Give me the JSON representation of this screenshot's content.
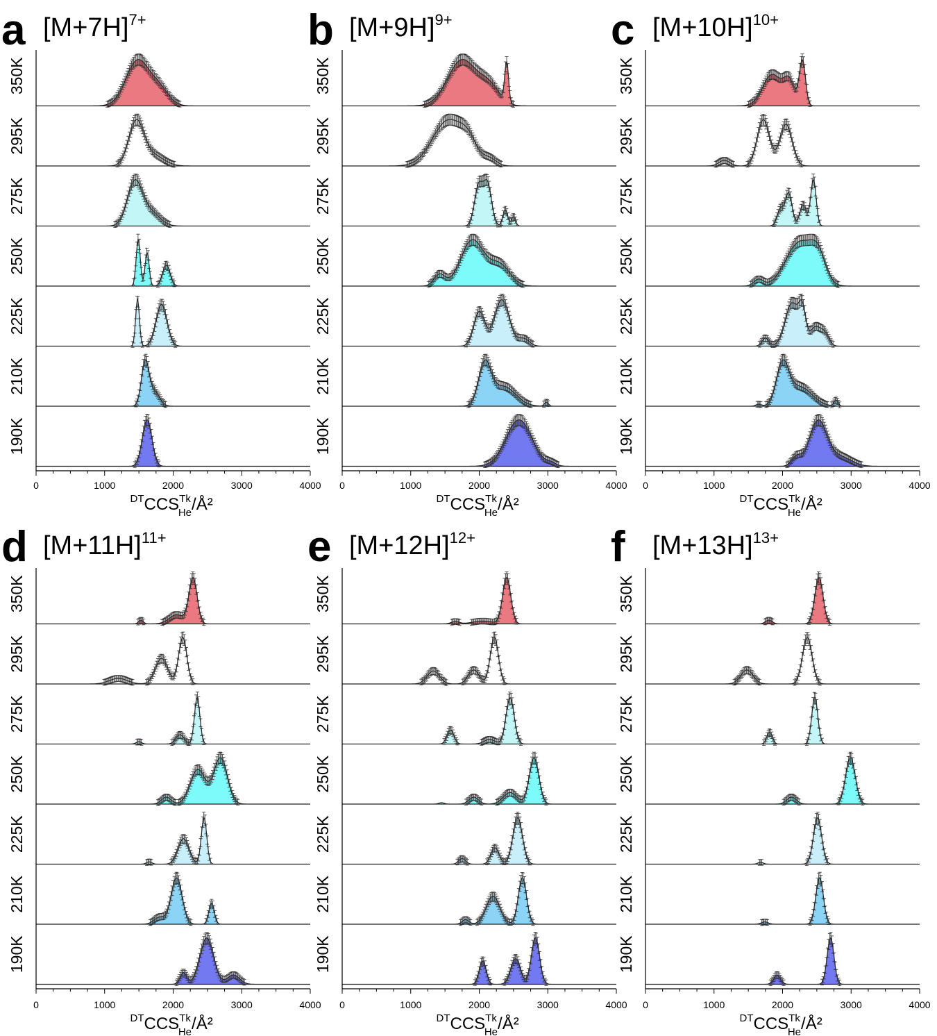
{
  "figure": {
    "colors": {
      "350K": "#e8626b",
      "295K": "#ffffff",
      "275K": "#b8f4f4",
      "250K": "#66fafa",
      "225K": "#c0ecfa",
      "210K": "#78ccf4",
      "190K": "#5a62ee"
    }
  },
  "chart_data": [
    {
      "type": "area",
      "panel": "a",
      "ion": "[M+7H]",
      "charge": "7+",
      "xlim": [
        0,
        4000
      ],
      "xticks": [
        "0",
        "1000",
        "2000",
        "3000",
        "4000"
      ],
      "xlabel": {
        "pre": "DT",
        "main": "CCS",
        "sub": "He",
        "sup": "Tk",
        "unit": "/Å²"
      },
      "series": [
        {
          "name": "350K",
          "peaks": [
            [
              1480,
              170,
              1.0
            ],
            [
              1800,
              140,
              0.35
            ]
          ]
        },
        {
          "name": "295K",
          "peaks": [
            [
              1460,
              110,
              1.0
            ],
            [
              1700,
              160,
              0.25
            ]
          ]
        },
        {
          "name": "275K",
          "peaks": [
            [
              1440,
              110,
              1.0
            ],
            [
              1680,
              130,
              0.3
            ]
          ]
        },
        {
          "name": "250K",
          "peaks": [
            [
              1490,
              30,
              1.0
            ],
            [
              1620,
              30,
              0.72
            ],
            [
              1900,
              55,
              0.45
            ]
          ]
        },
        {
          "name": "225K",
          "peaks": [
            [
              1480,
              28,
              1.0
            ],
            [
              1830,
              80,
              0.9
            ]
          ]
        },
        {
          "name": "210K",
          "peaks": [
            [
              1590,
              55,
              1.0
            ],
            [
              1720,
              80,
              0.35
            ]
          ]
        },
        {
          "name": "190K",
          "peaks": [
            [
              1620,
              70,
              1.0
            ]
          ]
        }
      ]
    },
    {
      "type": "area",
      "panel": "b",
      "ion": "[M+9H]",
      "charge": "9+",
      "xlim": [
        0,
        4000
      ],
      "xticks": [
        "0",
        "1000",
        "2000",
        "3000",
        "4000"
      ],
      "xlabel": {
        "pre": "DT",
        "main": "CCS",
        "sub": "He",
        "sup": "Tk",
        "unit": "/Å²"
      },
      "series": [
        {
          "name": "350K",
          "peaks": [
            [
              1750,
              210,
              1.0
            ],
            [
              2150,
              150,
              0.4
            ],
            [
              2400,
              28,
              0.85
            ]
          ]
        },
        {
          "name": "295K",
          "peaks": [
            [
              1550,
              230,
              1.0
            ],
            [
              1850,
              120,
              0.35
            ],
            [
              2150,
              100,
              0.15
            ]
          ]
        },
        {
          "name": "275K",
          "peaks": [
            [
              1990,
              60,
              0.85
            ],
            [
              2120,
              60,
              0.9
            ],
            [
              2380,
              35,
              0.35
            ],
            [
              2500,
              30,
              0.2
            ]
          ]
        },
        {
          "name": "250K",
          "peaks": [
            [
              1900,
              170,
              1.0
            ],
            [
              1420,
              80,
              0.25
            ],
            [
              2300,
              150,
              0.45
            ]
          ]
        },
        {
          "name": "225K",
          "peaks": [
            [
              2000,
              80,
              0.7
            ],
            [
              2330,
              110,
              0.95
            ],
            [
              2650,
              80,
              0.15
            ]
          ]
        },
        {
          "name": "210K",
          "peaks": [
            [
              2080,
              90,
              1.0
            ],
            [
              2350,
              180,
              0.5
            ],
            [
              2980,
              30,
              0.1
            ]
          ]
        },
        {
          "name": "190K",
          "peaks": [
            [
              2580,
              190,
              1.0
            ],
            [
              3050,
              70,
              0.06
            ]
          ]
        }
      ]
    },
    {
      "type": "area",
      "panel": "c",
      "ion": "[M+10H]",
      "charge": "10+",
      "xlim": [
        0,
        4000
      ],
      "xticks": [
        "0",
        "1000",
        "2000",
        "3000",
        "4000"
      ],
      "xlabel": {
        "pre": "DT",
        "main": "CCS",
        "sub": "He",
        "sup": "Tk",
        "unit": "/Å²"
      },
      "series": [
        {
          "name": "350K",
          "peaks": [
            [
              1850,
              140,
              0.7
            ],
            [
              2100,
              80,
              0.5
            ],
            [
              2290,
              45,
              1.0
            ]
          ]
        },
        {
          "name": "295K",
          "peaks": [
            [
              1720,
              90,
              1.0
            ],
            [
              2050,
              90,
              0.9
            ],
            [
              1150,
              80,
              0.12
            ]
          ]
        },
        {
          "name": "275K",
          "peaks": [
            [
              1970,
              50,
              0.35
            ],
            [
              2090,
              50,
              0.7
            ],
            [
              2300,
              50,
              0.45
            ],
            [
              2450,
              40,
              1.0
            ]
          ]
        },
        {
          "name": "250K",
          "peaks": [
            [
              2250,
              200,
              1.0
            ],
            [
              2520,
              110,
              0.55
            ],
            [
              1650,
              70,
              0.15
            ]
          ]
        },
        {
          "name": "225K",
          "peaks": [
            [
              2140,
              100,
              0.8
            ],
            [
              2290,
              50,
              0.55
            ],
            [
              2480,
              80,
              0.35
            ],
            [
              2620,
              60,
              0.2
            ],
            [
              1750,
              50,
              0.15
            ]
          ]
        },
        {
          "name": "210K",
          "peaks": [
            [
              2000,
              90,
              1.0
            ],
            [
              2250,
              180,
              0.5
            ],
            [
              2780,
              30,
              0.15
            ],
            [
              1650,
              40,
              0.05
            ]
          ]
        },
        {
          "name": "190K",
          "peaks": [
            [
              2520,
              130,
              1.0
            ],
            [
              2200,
              70,
              0.2
            ],
            [
              2850,
              160,
              0.2
            ]
          ]
        }
      ]
    },
    {
      "type": "area",
      "panel": "d",
      "ion": "[M+11H]",
      "charge": "11+",
      "xlim": [
        0,
        4000
      ],
      "xticks": [
        "0",
        "1000",
        "2000",
        "3000",
        "4000"
      ],
      "xlabel": {
        "pre": "DT",
        "main": "CCS",
        "sub": "He",
        "sup": "Tk",
        "unit": "/Å²"
      },
      "series": [
        {
          "name": "350K",
          "peaks": [
            [
              2290,
              60,
              1.0
            ],
            [
              2050,
              110,
              0.2
            ],
            [
              1530,
              35,
              0.08
            ]
          ]
        },
        {
          "name": "295K",
          "peaks": [
            [
              2140,
              60,
              1.0
            ],
            [
              1830,
              90,
              0.55
            ],
            [
              1200,
              130,
              0.12
            ]
          ]
        },
        {
          "name": "275K",
          "peaks": [
            [
              2350,
              40,
              1.0
            ],
            [
              2100,
              60,
              0.2
            ],
            [
              1500,
              40,
              0.05
            ]
          ]
        },
        {
          "name": "250K",
          "peaks": [
            [
              2690,
              100,
              1.0
            ],
            [
              2360,
              110,
              0.75
            ],
            [
              1900,
              70,
              0.15
            ]
          ]
        },
        {
          "name": "225K",
          "peaks": [
            [
              2450,
              40,
              1.0
            ],
            [
              2150,
              80,
              0.55
            ],
            [
              1650,
              40,
              0.05
            ]
          ]
        },
        {
          "name": "210K",
          "peaks": [
            [
              2050,
              80,
              1.0
            ],
            [
              2560,
              40,
              0.45
            ],
            [
              1800,
              80,
              0.15
            ]
          ]
        },
        {
          "name": "190K",
          "peaks": [
            [
              2490,
              100,
              1.0
            ],
            [
              2150,
              50,
              0.25
            ],
            [
              2880,
              90,
              0.2
            ]
          ]
        }
      ]
    },
    {
      "type": "area",
      "panel": "e",
      "ion": "[M+12H]",
      "charge": "12+",
      "xlim": [
        0,
        4000
      ],
      "xticks": [
        "0",
        "1000",
        "2000",
        "3000",
        "4000"
      ],
      "xlabel": {
        "pre": "DT",
        "main": "CCS",
        "sub": "He",
        "sup": "Tk",
        "unit": "/Å²"
      },
      "series": [
        {
          "name": "350K",
          "peaks": [
            [
              2400,
              60,
              1.0
            ],
            [
              2050,
              150,
              0.06
            ],
            [
              1650,
              60,
              0.05
            ]
          ]
        },
        {
          "name": "295K",
          "peaks": [
            [
              2220,
              60,
              1.0
            ],
            [
              1920,
              80,
              0.3
            ],
            [
              1330,
              90,
              0.28
            ]
          ]
        },
        {
          "name": "275K",
          "peaks": [
            [
              2450,
              60,
              1.0
            ],
            [
              1580,
              50,
              0.3
            ],
            [
              2150,
              80,
              0.1
            ]
          ]
        },
        {
          "name": "250K",
          "peaks": [
            [
              2800,
              70,
              1.0
            ],
            [
              2450,
              100,
              0.25
            ],
            [
              1920,
              70,
              0.15
            ],
            [
              1450,
              40,
              0.03
            ]
          ]
        },
        {
          "name": "225K",
          "peaks": [
            [
              2560,
              70,
              1.0
            ],
            [
              2230,
              60,
              0.35
            ],
            [
              1750,
              50,
              0.12
            ]
          ]
        },
        {
          "name": "210K",
          "peaks": [
            [
              2630,
              60,
              1.0
            ],
            [
              2200,
              100,
              0.6
            ],
            [
              1800,
              50,
              0.1
            ]
          ]
        },
        {
          "name": "190K",
          "peaks": [
            [
              2820,
              60,
              1.0
            ],
            [
              2530,
              70,
              0.55
            ],
            [
              2050,
              50,
              0.5
            ]
          ]
        }
      ]
    },
    {
      "type": "area",
      "panel": "f",
      "ion": "[M+13H]",
      "charge": "13+",
      "xlim": [
        0,
        4000
      ],
      "xticks": [
        "0",
        "1000",
        "2000",
        "3000",
        "4000"
      ],
      "xlabel": {
        "pre": "DT",
        "main": "CCS",
        "sub": "He",
        "sup": "Tk",
        "unit": "/Å²"
      },
      "series": [
        {
          "name": "350K",
          "peaks": [
            [
              2530,
              60,
              1.0
            ],
            [
              1800,
              50,
              0.08
            ]
          ]
        },
        {
          "name": "295K",
          "peaks": [
            [
              2360,
              70,
              1.0
            ],
            [
              1480,
              90,
              0.3
            ]
          ]
        },
        {
          "name": "275K",
          "peaks": [
            [
              2470,
              45,
              1.0
            ],
            [
              1810,
              40,
              0.25
            ]
          ]
        },
        {
          "name": "250K",
          "peaks": [
            [
              2990,
              70,
              1.0
            ],
            [
              2130,
              70,
              0.15
            ]
          ]
        },
        {
          "name": "225K",
          "peaks": [
            [
              2510,
              60,
              1.0
            ],
            [
              1680,
              40,
              0.04
            ]
          ]
        },
        {
          "name": "210K",
          "peaks": [
            [
              2540,
              55,
              1.0
            ],
            [
              1740,
              50,
              0.05
            ]
          ]
        },
        {
          "name": "190K",
          "peaks": [
            [
              2700,
              50,
              1.0
            ],
            [
              1920,
              50,
              0.2
            ]
          ]
        }
      ]
    }
  ]
}
